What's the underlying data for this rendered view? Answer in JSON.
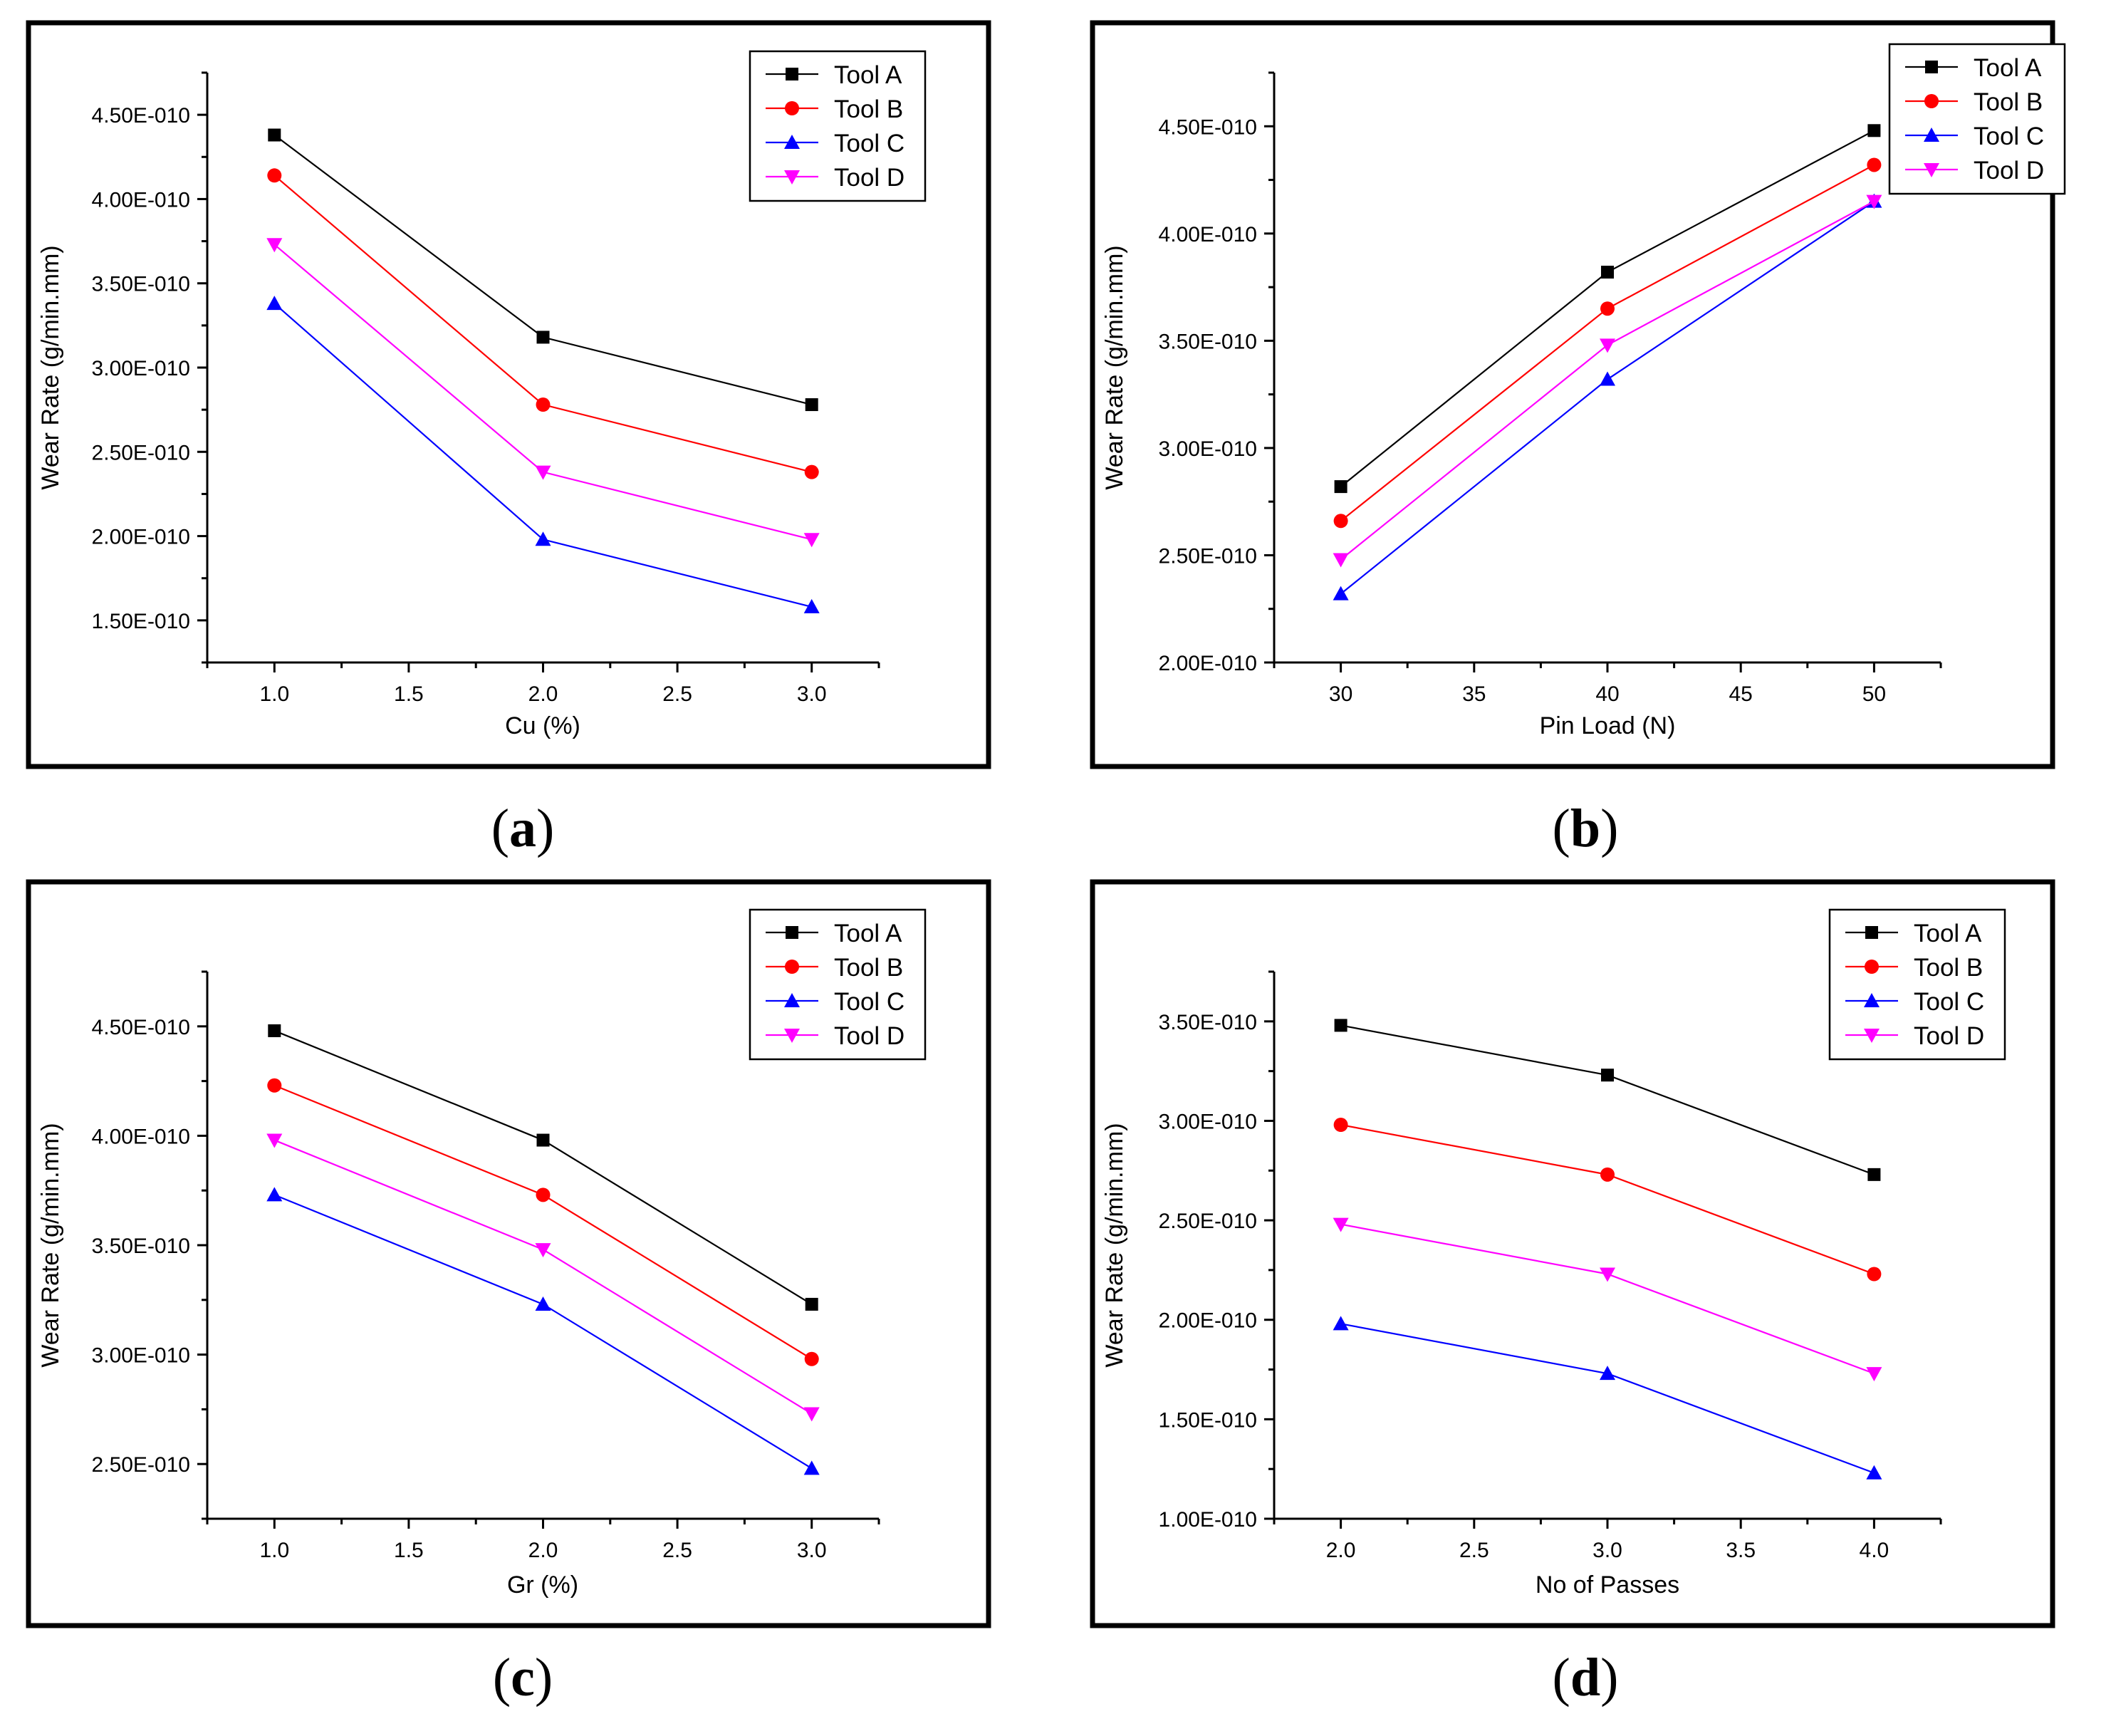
{
  "colors": {
    "tool_a": "#000000",
    "tool_b": "#ff0000",
    "tool_c": "#0000ff",
    "tool_d": "#ff00ff"
  },
  "chart_data": [
    {
      "panel": "a",
      "type": "line",
      "xlabel": "Cu (%)",
      "ylabel": "Wear Rate (g/min.mm)",
      "xlim": [
        0.75,
        3.25
      ],
      "ylim": [
        1.25e-10,
        4.75e-10
      ],
      "xticks": [
        1.0,
        1.5,
        2.0,
        2.5,
        3.0
      ],
      "xtick_labels": [
        "1.0",
        "1.5",
        "2.0",
        "2.5",
        "3.0"
      ],
      "yticks": [
        1.5e-10,
        2e-10,
        2.5e-10,
        3e-10,
        3.5e-10,
        4e-10,
        4.5e-10
      ],
      "ytick_labels": [
        "1.50E-010",
        "2.00E-010",
        "2.50E-010",
        "3.00E-010",
        "3.50E-010",
        "4.00E-010",
        "4.50E-010"
      ],
      "x": [
        1.0,
        2.0,
        3.0
      ],
      "series": [
        {
          "name": "Tool A",
          "marker": "square",
          "values": [
            4.38e-10,
            3.18e-10,
            2.78e-10
          ]
        },
        {
          "name": "Tool B",
          "marker": "circle",
          "values": [
            4.14e-10,
            2.78e-10,
            2.38e-10
          ]
        },
        {
          "name": "Tool C",
          "marker": "triangle-up",
          "values": [
            3.38e-10,
            1.98e-10,
            1.58e-10
          ]
        },
        {
          "name": "Tool D",
          "marker": "triangle-down",
          "values": [
            3.73e-10,
            2.38e-10,
            1.98e-10
          ]
        }
      ],
      "legend": "top-right"
    },
    {
      "panel": "b",
      "type": "line",
      "xlabel": "Pin Load (N)",
      "ylabel": "Wear Rate (g/min.mm)",
      "xlim": [
        27.5,
        52.5
      ],
      "ylim": [
        2e-10,
        4.75e-10
      ],
      "xticks": [
        30,
        35,
        40,
        45,
        50
      ],
      "xtick_labels": [
        "30",
        "35",
        "40",
        "45",
        "50"
      ],
      "yticks": [
        2e-10,
        2.5e-10,
        3e-10,
        3.5e-10,
        4e-10,
        4.5e-10
      ],
      "ytick_labels": [
        "2.00E-010",
        "2.50E-010",
        "3.00E-010",
        "3.50E-010",
        "4.00E-010",
        "4.50E-010"
      ],
      "x": [
        30,
        40,
        50
      ],
      "series": [
        {
          "name": "Tool A",
          "marker": "square",
          "values": [
            2.82e-10,
            3.82e-10,
            4.48e-10
          ]
        },
        {
          "name": "Tool B",
          "marker": "circle",
          "values": [
            2.66e-10,
            3.65e-10,
            4.32e-10
          ]
        },
        {
          "name": "Tool C",
          "marker": "triangle-up",
          "values": [
            2.32e-10,
            3.32e-10,
            4.15e-10
          ]
        },
        {
          "name": "Tool D",
          "marker": "triangle-down",
          "values": [
            2.48e-10,
            3.48e-10,
            4.15e-10
          ]
        }
      ],
      "legend": "top-right"
    },
    {
      "panel": "c",
      "type": "line",
      "xlabel": "Gr (%)",
      "ylabel": "Wear Rate (g/min.mm)",
      "xlim": [
        0.75,
        3.25
      ],
      "ylim": [
        2.25e-10,
        4.75e-10
      ],
      "xticks": [
        1.0,
        1.5,
        2.0,
        2.5,
        3.0
      ],
      "xtick_labels": [
        "1.0",
        "1.5",
        "2.0",
        "2.5",
        "3.0"
      ],
      "yticks": [
        2.5e-10,
        3e-10,
        3.5e-10,
        4e-10,
        4.5e-10
      ],
      "ytick_labels": [
        "2.50E-010",
        "3.00E-010",
        "3.50E-010",
        "4.00E-010",
        "4.50E-010"
      ],
      "x": [
        1.0,
        2.0,
        3.0
      ],
      "series": [
        {
          "name": "Tool A",
          "marker": "square",
          "values": [
            4.48e-10,
            3.98e-10,
            3.23e-10
          ]
        },
        {
          "name": "Tool B",
          "marker": "circle",
          "values": [
            4.23e-10,
            3.73e-10,
            2.98e-10
          ]
        },
        {
          "name": "Tool C",
          "marker": "triangle-up",
          "values": [
            3.73e-10,
            3.23e-10,
            2.48e-10
          ]
        },
        {
          "name": "Tool D",
          "marker": "triangle-down",
          "values": [
            3.98e-10,
            3.48e-10,
            2.73e-10
          ]
        }
      ],
      "legend": "top-right"
    },
    {
      "panel": "d",
      "type": "line",
      "xlabel": "No of Passes",
      "ylabel": "Wear Rate (g/min.mm)",
      "xlim": [
        1.75,
        4.25
      ],
      "ylim": [
        1e-10,
        3.75e-10
      ],
      "xticks": [
        2.0,
        2.5,
        3.0,
        3.5,
        4.0
      ],
      "xtick_labels": [
        "2.0",
        "2.5",
        "3.0",
        "3.5",
        "4.0"
      ],
      "yticks": [
        1e-10,
        1.5e-10,
        2e-10,
        2.5e-10,
        3e-10,
        3.5e-10
      ],
      "ytick_labels": [
        "1.00E-010",
        "1.50E-010",
        "2.00E-010",
        "2.50E-010",
        "3.00E-010",
        "3.50E-010"
      ],
      "x": [
        2.0,
        3.0,
        4.0
      ],
      "series": [
        {
          "name": "Tool A",
          "marker": "square",
          "values": [
            3.48e-10,
            3.23e-10,
            2.73e-10
          ]
        },
        {
          "name": "Tool B",
          "marker": "circle",
          "values": [
            2.98e-10,
            2.73e-10,
            2.23e-10
          ]
        },
        {
          "name": "Tool C",
          "marker": "triangle-up",
          "values": [
            1.98e-10,
            1.73e-10,
            1.23e-10
          ]
        },
        {
          "name": "Tool D",
          "marker": "triangle-down",
          "values": [
            2.48e-10,
            2.23e-10,
            1.73e-10
          ]
        }
      ],
      "legend": "top-right"
    }
  ],
  "panel_labels": [
    {
      "open": "(",
      "letter": "a",
      "close": ")"
    },
    {
      "open": "(",
      "letter": "b",
      "close": ")"
    },
    {
      "open": "(",
      "letter": "c",
      "close": ")"
    },
    {
      "open": "(",
      "letter": "d",
      "close": ")"
    }
  ]
}
